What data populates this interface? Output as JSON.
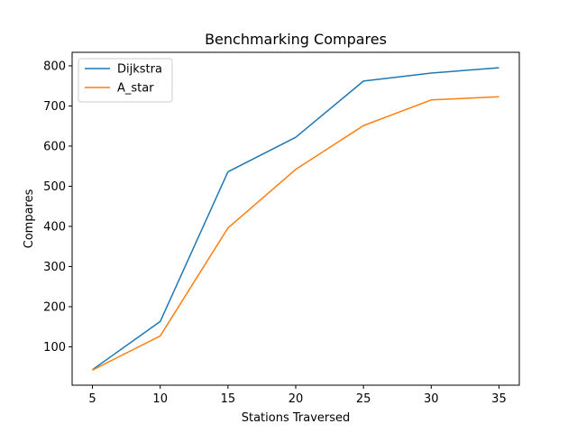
{
  "chart_data": {
    "type": "line",
    "title": "Benchmarking Compares",
    "xlabel": "Stations Traversed",
    "ylabel": "Compares",
    "x": [
      5,
      10,
      15,
      20,
      25,
      30,
      35
    ],
    "series": [
      {
        "name": "Dijkstra",
        "color": "#1f77b4",
        "values": [
          43,
          163,
          536,
          622,
          762,
          782,
          795
        ]
      },
      {
        "name": "A_star",
        "color": "#ff7f0e",
        "values": [
          42,
          127,
          396,
          542,
          651,
          715,
          723
        ]
      }
    ],
    "xticks": [
      5,
      10,
      15,
      20,
      25,
      30,
      35
    ],
    "yticks": [
      100,
      200,
      300,
      400,
      500,
      600,
      700,
      800
    ],
    "xlim": [
      3.5,
      36.5
    ],
    "ylim": [
      4.4,
      833.6
    ],
    "grid": false,
    "legend_position": "top-left"
  }
}
